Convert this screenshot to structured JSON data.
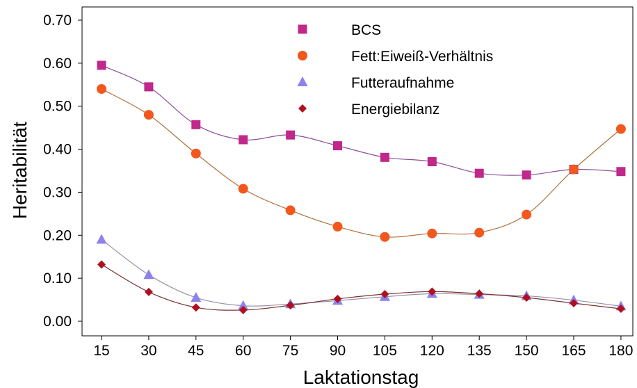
{
  "chart_data": {
    "type": "line",
    "title": "",
    "xlabel": "Laktationstag",
    "ylabel": "Heritabilität",
    "x": [
      15,
      30,
      45,
      60,
      75,
      90,
      105,
      120,
      135,
      150,
      165,
      180
    ],
    "x_tick_labels": [
      "15",
      "30",
      "45",
      "60",
      "75",
      "90",
      "105",
      "120",
      "135",
      "150",
      "165",
      "180"
    ],
    "ylim": [
      0.0,
      0.7
    ],
    "y_tick_labels": [
      "0.00",
      "0.10",
      "0.20",
      "0.30",
      "0.40",
      "0.50",
      "0.60",
      "0.70"
    ],
    "y_ticks": [
      0.0,
      0.1,
      0.2,
      0.3,
      0.4,
      0.5,
      0.6,
      0.7
    ],
    "grid": false,
    "legend_position": "top-center",
    "series": [
      {
        "name": "BCS",
        "marker": "square",
        "color": "#c0288a",
        "line_color": "#8a4f9a",
        "values": [
          0.595,
          0.545,
          0.457,
          0.422,
          0.433,
          0.408,
          0.381,
          0.371,
          0.344,
          0.34,
          0.353,
          0.348
        ]
      },
      {
        "name": "Fett:Eiweiß-Verhältnis",
        "marker": "circle",
        "color": "#f2581e",
        "line_color": "#b0703a",
        "values": [
          0.54,
          0.48,
          0.39,
          0.308,
          0.258,
          0.22,
          0.196,
          0.204,
          0.206,
          0.248,
          0.353,
          0.447
        ]
      },
      {
        "name": "Futteraufnahme",
        "marker": "triangle",
        "color": "#8c82ee",
        "line_color": "#9a8fa8",
        "values": [
          0.19,
          0.108,
          0.055,
          0.036,
          0.04,
          0.048,
          0.057,
          0.064,
          0.062,
          0.059,
          0.049,
          0.035
        ]
      },
      {
        "name": "Energiebilanz",
        "marker": "diamond",
        "color": "#b0101e",
        "line_color": "#7a3030",
        "values": [
          0.132,
          0.068,
          0.032,
          0.026,
          0.037,
          0.052,
          0.063,
          0.069,
          0.064,
          0.055,
          0.042,
          0.029
        ]
      }
    ]
  }
}
